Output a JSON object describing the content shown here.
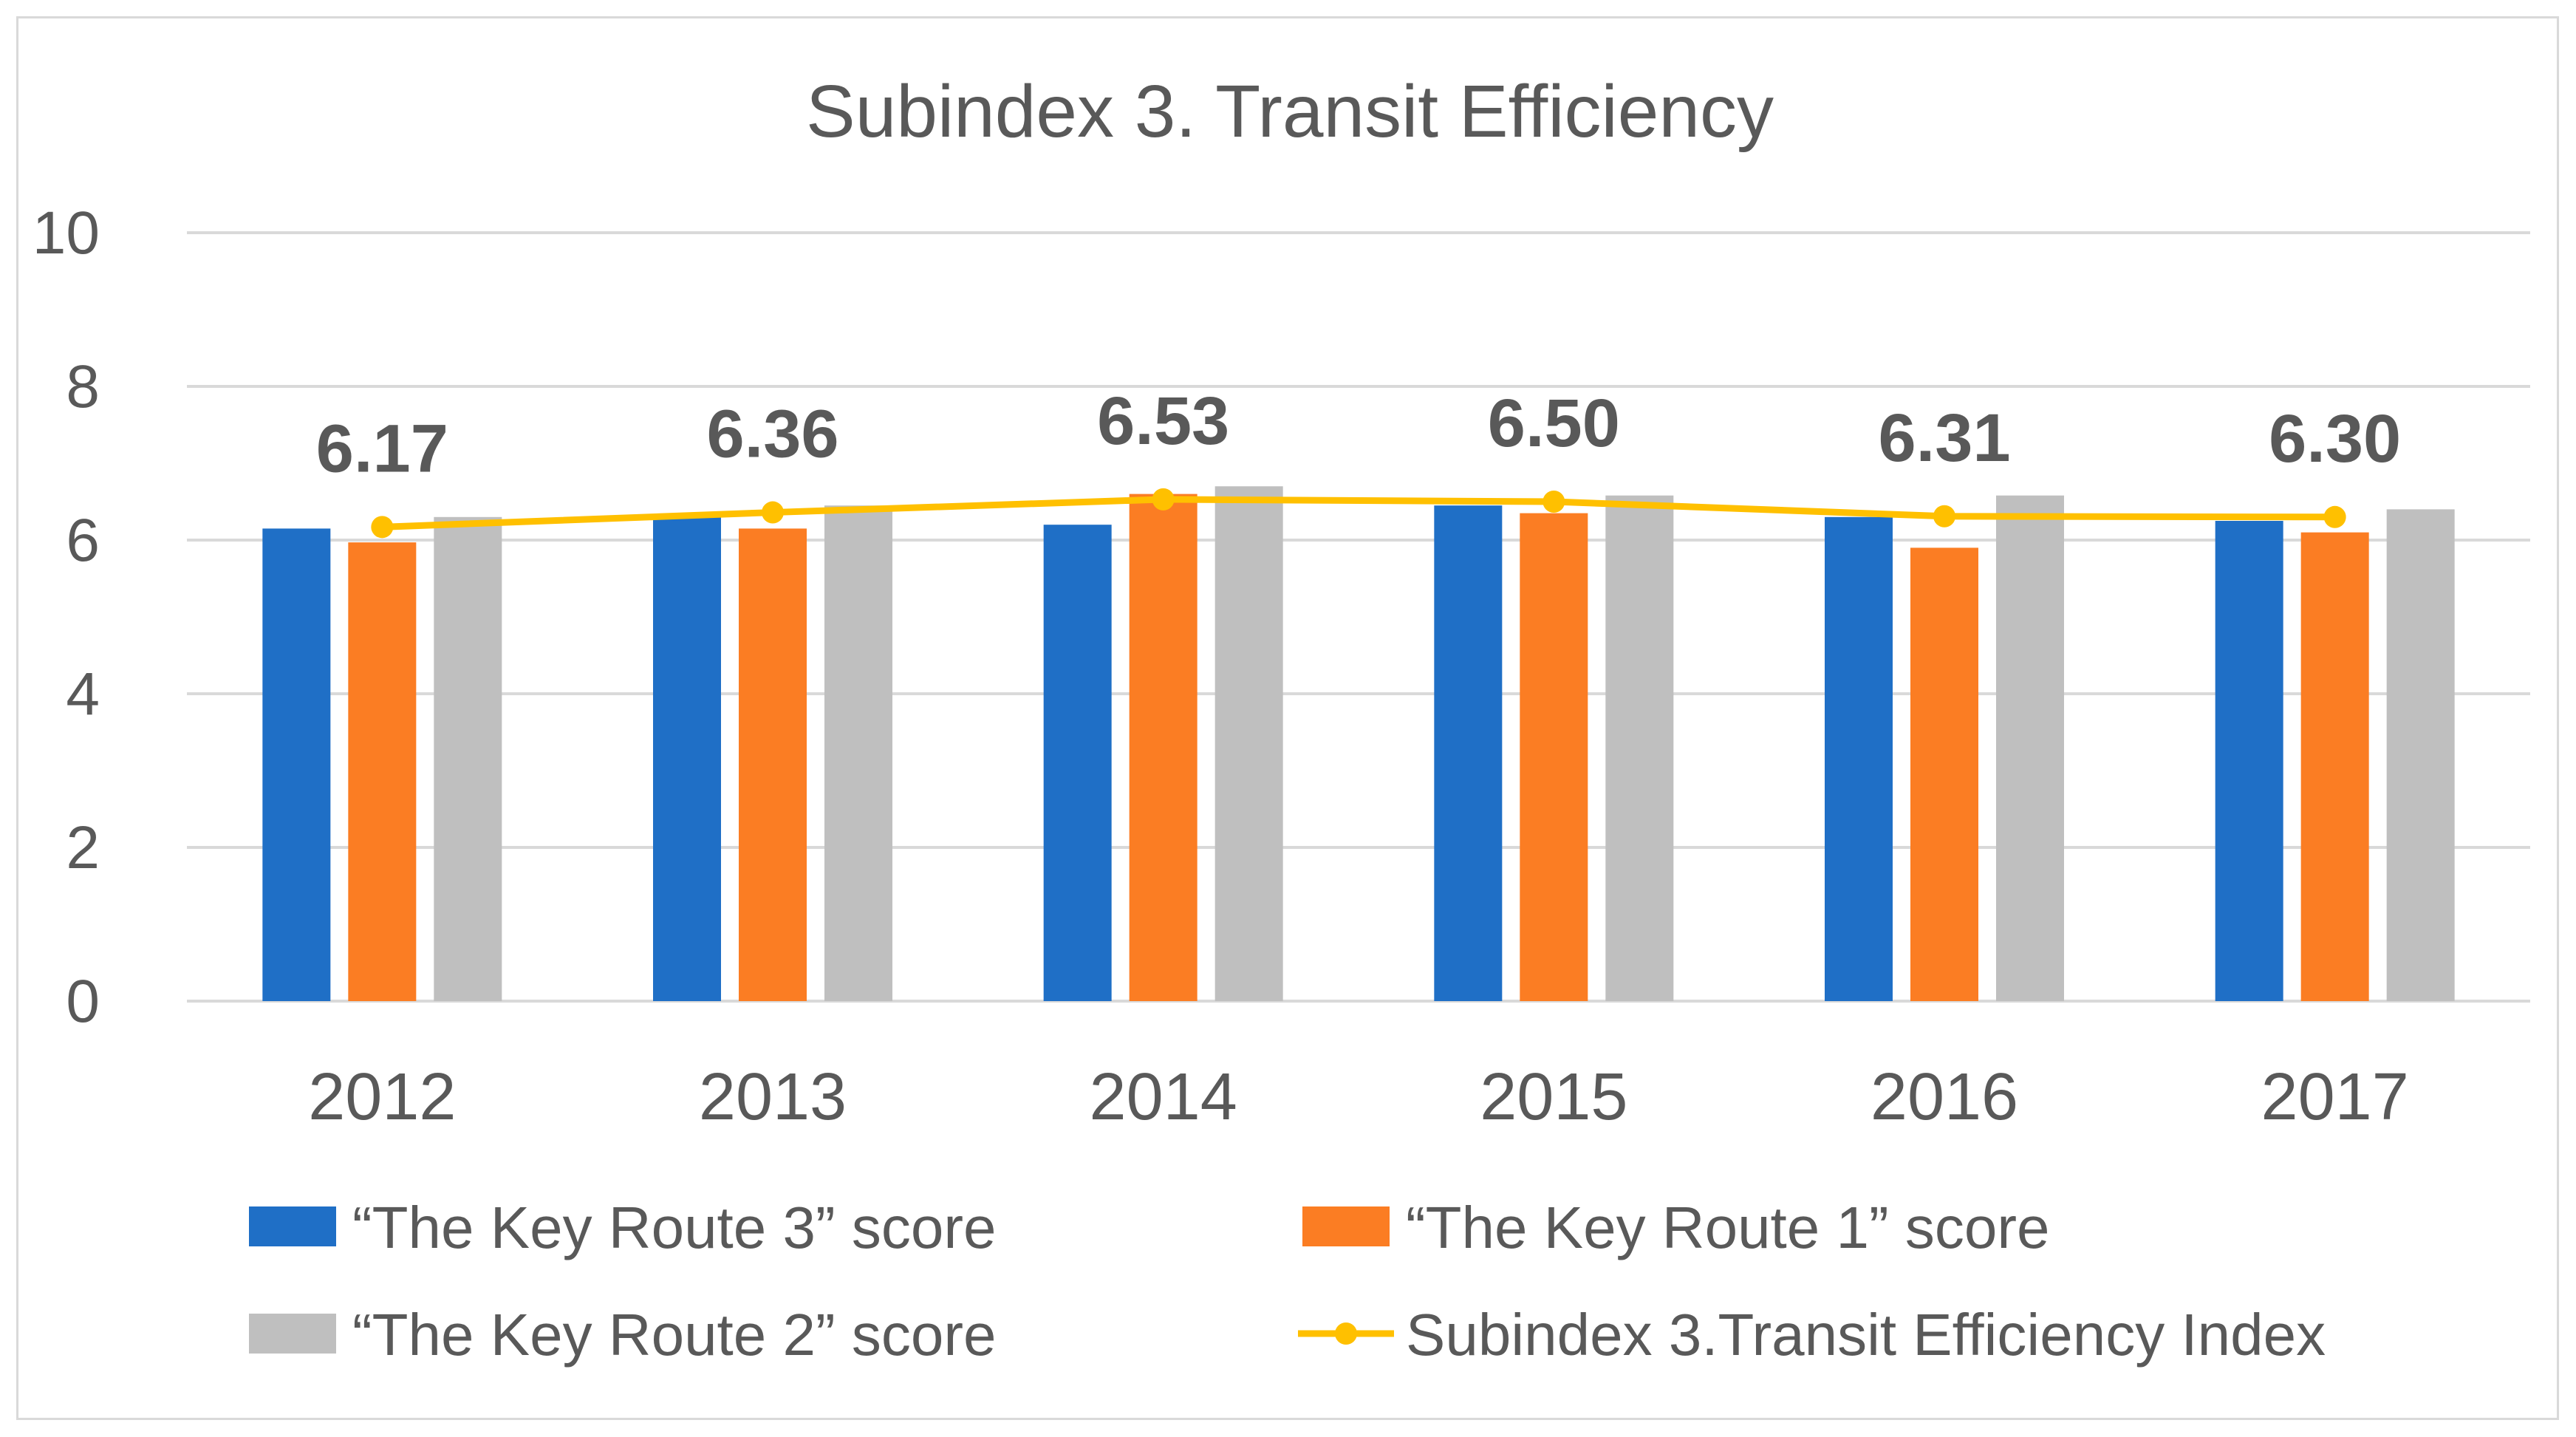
{
  "chart_data": {
    "type": "bar+line",
    "title": "Subindex 3. Transit Efficiency",
    "categories": [
      "2012",
      "2013",
      "2014",
      "2015",
      "2016",
      "2017"
    ],
    "ylim": [
      0,
      10
    ],
    "yticks": [
      0,
      2,
      4,
      6,
      8,
      10
    ],
    "grid": true,
    "series": [
      {
        "name": "“The Key Route 3”  score",
        "kind": "bar",
        "color": "#1f6fc6",
        "values": [
          6.15,
          6.3,
          6.2,
          6.45,
          6.3,
          6.25
        ]
      },
      {
        "name": "“The Key Route 1”  score",
        "kind": "bar",
        "color": "#fb7d23",
        "values": [
          5.97,
          6.15,
          6.6,
          6.35,
          5.9,
          6.1
        ]
      },
      {
        "name": "“The Key Route 2”  score",
        "kind": "bar",
        "color": "#bfbfbf",
        "values": [
          6.3,
          6.45,
          6.7,
          6.58,
          6.58,
          6.4
        ]
      },
      {
        "name": "Subindex 3.Transit Efficiency Index",
        "kind": "line",
        "color": "#ffc000",
        "values": [
          6.17,
          6.36,
          6.53,
          6.5,
          6.31,
          6.3
        ],
        "labels": [
          "6.17",
          "6.36",
          "6.53",
          "6.50",
          "6.31",
          "6.30"
        ]
      }
    ],
    "legend": "bottom",
    "legend_order": [
      0,
      1,
      2,
      3
    ]
  }
}
